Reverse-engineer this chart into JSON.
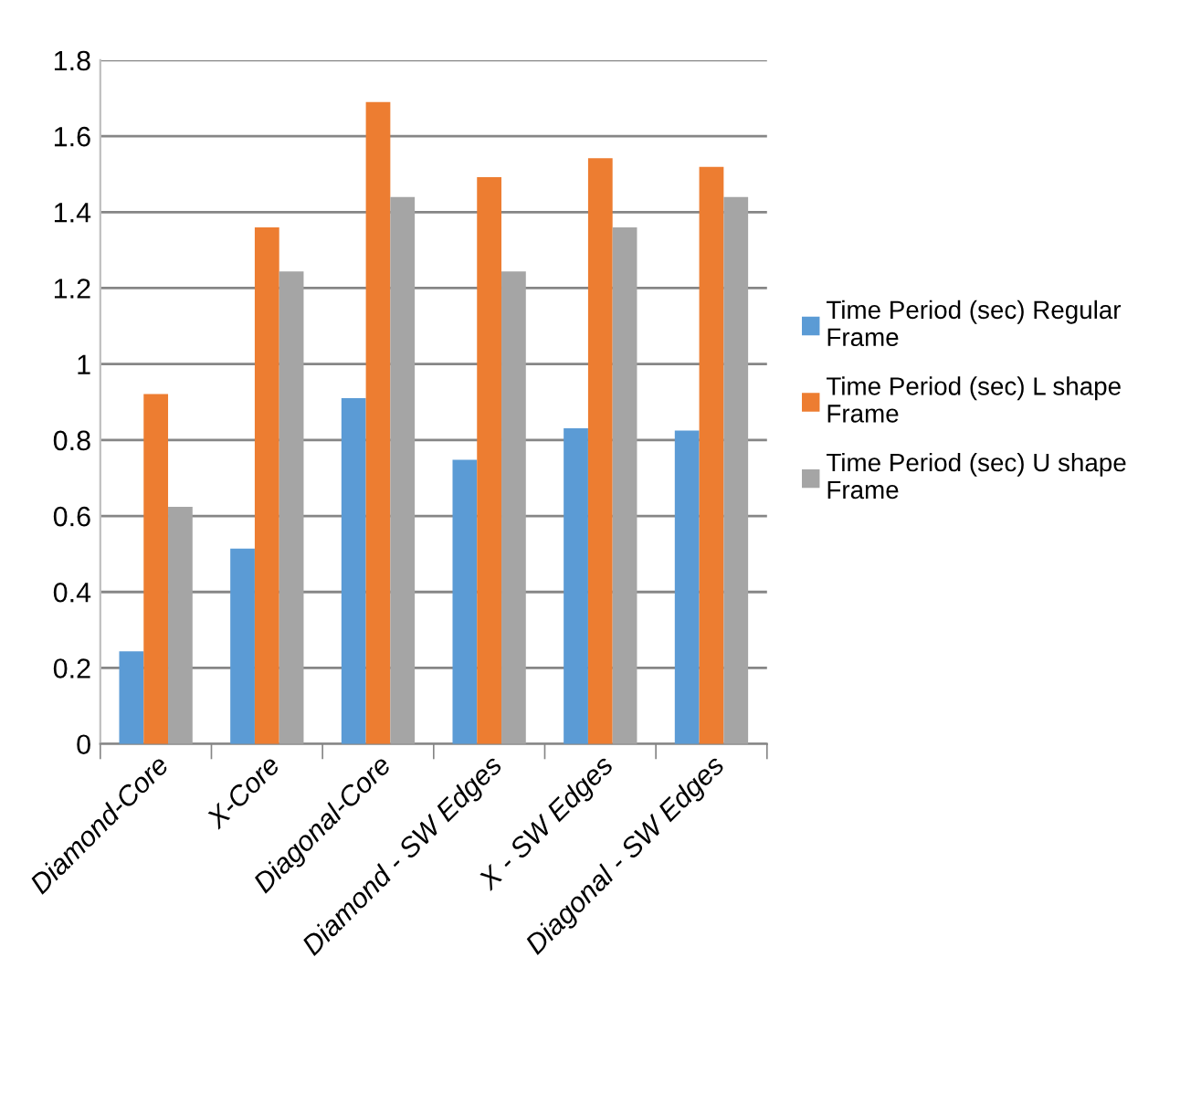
{
  "chart_data": {
    "type": "bar",
    "categories": [
      "Diamond-Core",
      "X-Core",
      "Diagonal-Core",
      "Diamond - SW Edges",
      "X - SW Edges",
      "Diagonal - SW Edges"
    ],
    "series": [
      {
        "name": "Time Period (sec) Regular Frame",
        "color": "#5b9bd5",
        "values": [
          0.244,
          0.514,
          0.91,
          0.748,
          0.831,
          0.825
        ]
      },
      {
        "name": "Time Period (sec) L shape Frame",
        "color": "#ed7d31",
        "values": [
          0.921,
          1.36,
          1.69,
          1.492,
          1.542,
          1.519
        ]
      },
      {
        "name": "Time Period (sec) U shape Frame",
        "color": "#a5a5a5",
        "values": [
          0.624,
          1.244,
          1.44,
          1.244,
          1.36,
          1.44
        ]
      }
    ],
    "ylim": [
      0,
      1.8
    ],
    "yticks": [
      0,
      0.2,
      0.4,
      0.6,
      0.8,
      {
        "value": 1,
        "label": "1"
      },
      1.2,
      1.4,
      1.6,
      1.8
    ],
    "grid": "y",
    "legend": "right"
  }
}
